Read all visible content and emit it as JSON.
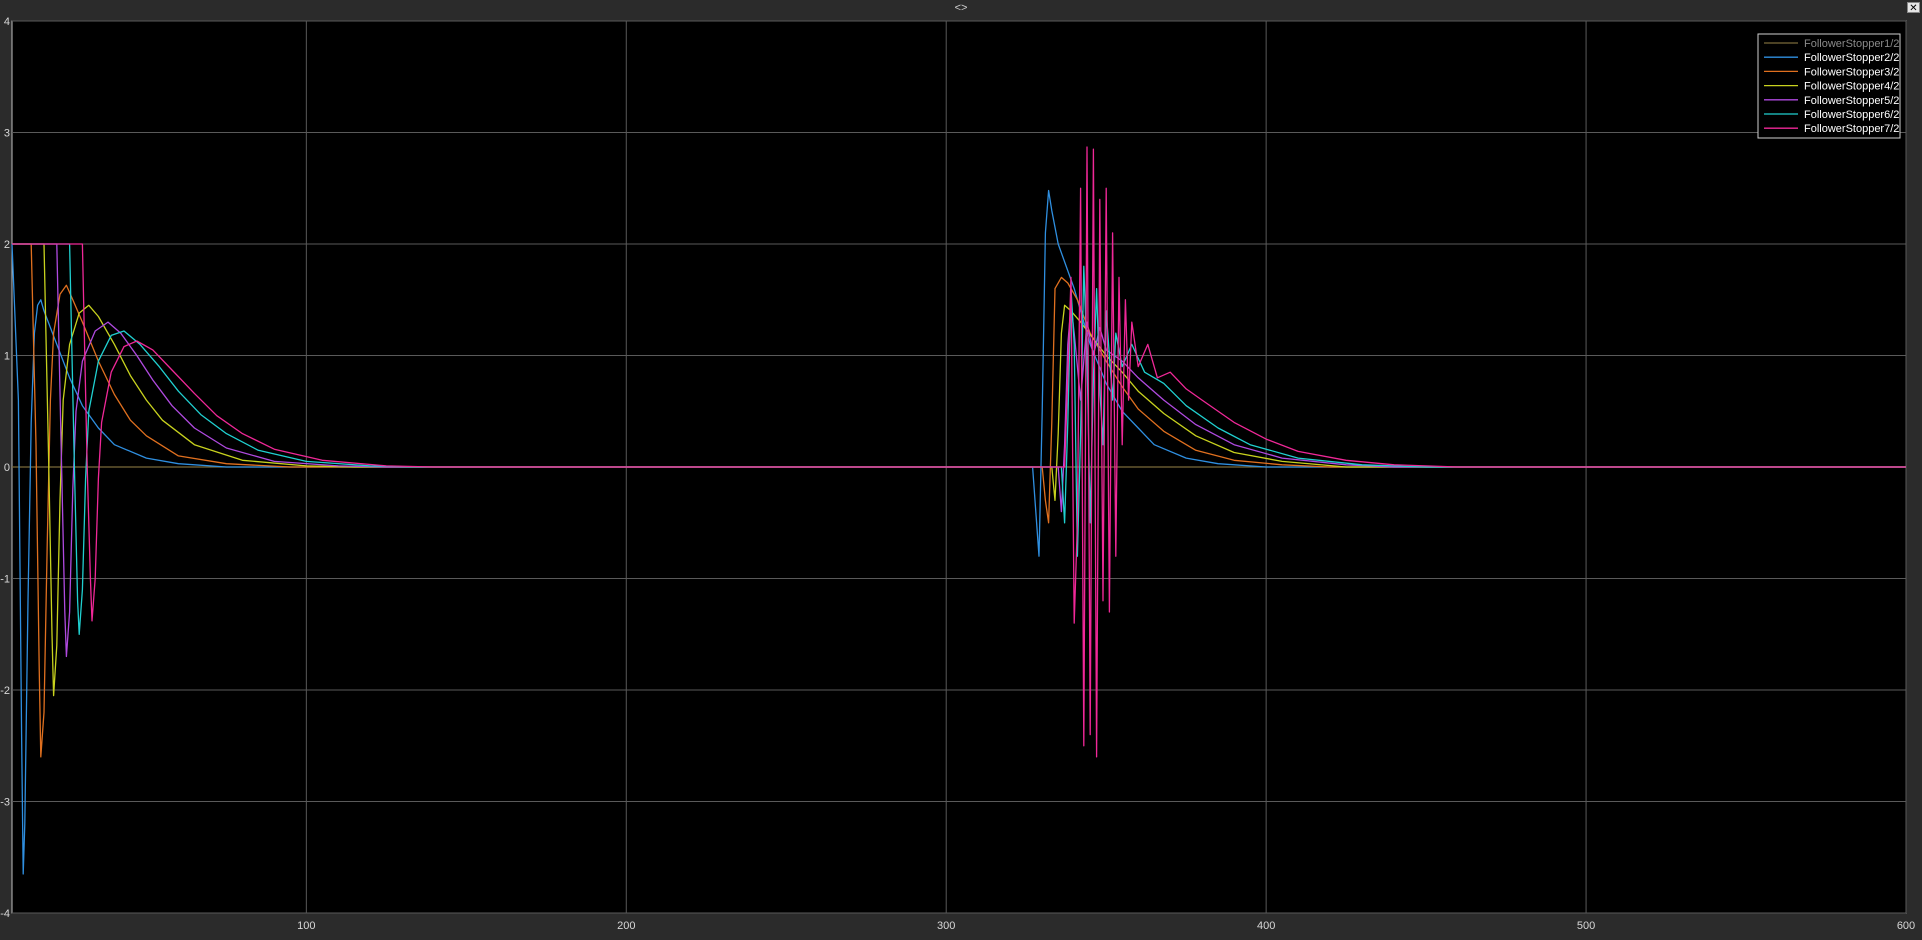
{
  "window": {
    "title": "<>",
    "close_label": "✕"
  },
  "chart_data": {
    "type": "line",
    "title": "",
    "xlabel": "",
    "ylabel": "",
    "xlim": [
      8,
      600
    ],
    "ylim": [
      -4,
      4
    ],
    "x_ticks": [
      100,
      200,
      300,
      400,
      500,
      600
    ],
    "y_ticks": [
      4,
      3,
      2,
      1,
      0,
      -1,
      -2,
      -3,
      -4
    ],
    "grid": true,
    "legend_position": "top-right",
    "background": "#000000",
    "series": [
      {
        "name": "FollowerStopper1/2",
        "color": "#7a6a3a",
        "points": [
          [
            8,
            0
          ],
          [
            600,
            0
          ]
        ]
      },
      {
        "name": "FollowerStopper2/2",
        "color": "#2f8fe0",
        "points": [
          [
            8,
            2
          ],
          [
            10,
            0.6
          ],
          [
            11,
            -2.4
          ],
          [
            11.5,
            -3.65
          ],
          [
            12,
            -3.2
          ],
          [
            13,
            -1.2
          ],
          [
            14,
            0.4
          ],
          [
            15,
            1.2
          ],
          [
            16,
            1.45
          ],
          [
            17,
            1.5
          ],
          [
            18,
            1.4
          ],
          [
            22,
            1.1
          ],
          [
            26,
            0.8
          ],
          [
            30,
            0.55
          ],
          [
            35,
            0.35
          ],
          [
            40,
            0.2
          ],
          [
            50,
            0.08
          ],
          [
            60,
            0.03
          ],
          [
            75,
            0
          ],
          [
            327,
            0
          ],
          [
            328,
            -0.4
          ],
          [
            329,
            -0.8
          ],
          [
            330,
            0.5
          ],
          [
            331,
            2.1
          ],
          [
            332,
            2.48
          ],
          [
            333,
            2.3
          ],
          [
            335,
            2.0
          ],
          [
            340,
            1.6
          ],
          [
            345,
            1.1
          ],
          [
            350,
            0.75
          ],
          [
            355,
            0.5
          ],
          [
            360,
            0.35
          ],
          [
            365,
            0.2
          ],
          [
            375,
            0.08
          ],
          [
            385,
            0.03
          ],
          [
            400,
            0
          ],
          [
            600,
            0
          ]
        ]
      },
      {
        "name": "FollowerStopper3/2",
        "color": "#e0701f",
        "points": [
          [
            8,
            2
          ],
          [
            14,
            2
          ],
          [
            15.5,
            0.2
          ],
          [
            16.5,
            -1.8
          ],
          [
            17,
            -2.6
          ],
          [
            18,
            -2.2
          ],
          [
            19,
            -0.7
          ],
          [
            20,
            0.6
          ],
          [
            21,
            1.2
          ],
          [
            23,
            1.55
          ],
          [
            25,
            1.63
          ],
          [
            27,
            1.5
          ],
          [
            30,
            1.3
          ],
          [
            35,
            0.95
          ],
          [
            40,
            0.65
          ],
          [
            45,
            0.42
          ],
          [
            50,
            0.28
          ],
          [
            60,
            0.1
          ],
          [
            75,
            0.03
          ],
          [
            95,
            0
          ],
          [
            330,
            0
          ],
          [
            331,
            -0.3
          ],
          [
            332,
            -0.5
          ],
          [
            333,
            0.4
          ],
          [
            334,
            1.6
          ],
          [
            336,
            1.7
          ],
          [
            338,
            1.65
          ],
          [
            341,
            1.5
          ],
          [
            345,
            1.2
          ],
          [
            350,
            0.95
          ],
          [
            355,
            0.72
          ],
          [
            360,
            0.52
          ],
          [
            368,
            0.32
          ],
          [
            378,
            0.15
          ],
          [
            390,
            0.06
          ],
          [
            405,
            0.02
          ],
          [
            420,
            0
          ],
          [
            600,
            0
          ]
        ]
      },
      {
        "name": "FollowerStopper4/2",
        "color": "#c8d21e",
        "points": [
          [
            8,
            2
          ],
          [
            18,
            2
          ],
          [
            19.5,
            0
          ],
          [
            20.5,
            -1.5
          ],
          [
            21,
            -2.05
          ],
          [
            22,
            -1.6
          ],
          [
            23,
            -0.3
          ],
          [
            24,
            0.6
          ],
          [
            26,
            1.1
          ],
          [
            29,
            1.38
          ],
          [
            32,
            1.45
          ],
          [
            35,
            1.35
          ],
          [
            40,
            1.1
          ],
          [
            45,
            0.82
          ],
          [
            50,
            0.6
          ],
          [
            55,
            0.42
          ],
          [
            65,
            0.2
          ],
          [
            80,
            0.06
          ],
          [
            100,
            0.01
          ],
          [
            115,
            0
          ],
          [
            333,
            0
          ],
          [
            334,
            -0.3
          ],
          [
            335,
            0.3
          ],
          [
            336,
            1.2
          ],
          [
            337,
            1.45
          ],
          [
            339,
            1.4
          ],
          [
            342,
            1.3
          ],
          [
            346,
            1.15
          ],
          [
            350,
            1.0
          ],
          [
            355,
            0.85
          ],
          [
            360,
            0.68
          ],
          [
            368,
            0.48
          ],
          [
            378,
            0.28
          ],
          [
            390,
            0.13
          ],
          [
            405,
            0.05
          ],
          [
            425,
            0
          ],
          [
            600,
            0
          ]
        ]
      },
      {
        "name": "FollowerStopper5/2",
        "color": "#b04ae0",
        "points": [
          [
            8,
            2
          ],
          [
            22,
            2
          ],
          [
            23.5,
            0
          ],
          [
            24.5,
            -1.3
          ],
          [
            25,
            -1.7
          ],
          [
            26,
            -1.3
          ],
          [
            27,
            -0.2
          ],
          [
            28,
            0.5
          ],
          [
            30,
            0.95
          ],
          [
            34,
            1.22
          ],
          [
            38,
            1.3
          ],
          [
            42,
            1.2
          ],
          [
            47,
            1.0
          ],
          [
            52,
            0.78
          ],
          [
            58,
            0.55
          ],
          [
            65,
            0.35
          ],
          [
            75,
            0.17
          ],
          [
            90,
            0.05
          ],
          [
            110,
            0.01
          ],
          [
            125,
            0
          ],
          [
            335,
            0
          ],
          [
            336,
            -0.4
          ],
          [
            337,
            0.2
          ],
          [
            338,
            1.1
          ],
          [
            339,
            1.45
          ],
          [
            340,
            1.2
          ],
          [
            342,
            0.6
          ],
          [
            344,
            1.3
          ],
          [
            346,
            1.0
          ],
          [
            348,
            1.25
          ],
          [
            350,
            1.05
          ],
          [
            355,
            0.95
          ],
          [
            360,
            0.8
          ],
          [
            368,
            0.6
          ],
          [
            378,
            0.38
          ],
          [
            390,
            0.2
          ],
          [
            405,
            0.08
          ],
          [
            425,
            0.02
          ],
          [
            440,
            0
          ],
          [
            600,
            0
          ]
        ]
      },
      {
        "name": "FollowerStopper6/2",
        "color": "#20d0d0",
        "points": [
          [
            8,
            2
          ],
          [
            26,
            2
          ],
          [
            27.5,
            0
          ],
          [
            28.5,
            -1.2
          ],
          [
            29,
            -1.5
          ],
          [
            30,
            -1.1
          ],
          [
            31,
            -0.1
          ],
          [
            32,
            0.5
          ],
          [
            35,
            0.95
          ],
          [
            39,
            1.18
          ],
          [
            43,
            1.22
          ],
          [
            48,
            1.1
          ],
          [
            54,
            0.9
          ],
          [
            60,
            0.68
          ],
          [
            67,
            0.47
          ],
          [
            75,
            0.3
          ],
          [
            85,
            0.15
          ],
          [
            100,
            0.05
          ],
          [
            120,
            0.01
          ],
          [
            135,
            0
          ],
          [
            336,
            0
          ],
          [
            337,
            -0.5
          ],
          [
            338,
            0.4
          ],
          [
            339,
            1.6
          ],
          [
            340,
            1.1
          ],
          [
            341,
            -0.8
          ],
          [
            342,
            0.3
          ],
          [
            343,
            1.8
          ],
          [
            344,
            1.0
          ],
          [
            345,
            -0.5
          ],
          [
            346,
            0.8
          ],
          [
            347,
            1.6
          ],
          [
            348,
            0.7
          ],
          [
            349,
            0.2
          ],
          [
            350,
            1.4
          ],
          [
            351,
            1.0
          ],
          [
            352,
            0.6
          ],
          [
            353,
            1.2
          ],
          [
            355,
            0.9
          ],
          [
            358,
            1.1
          ],
          [
            362,
            0.85
          ],
          [
            368,
            0.75
          ],
          [
            375,
            0.55
          ],
          [
            385,
            0.35
          ],
          [
            395,
            0.2
          ],
          [
            410,
            0.08
          ],
          [
            430,
            0.02
          ],
          [
            450,
            0
          ],
          [
            600,
            0
          ]
        ]
      },
      {
        "name": "FollowerStopper7/2",
        "color": "#f02898",
        "points": [
          [
            8,
            2
          ],
          [
            30,
            2
          ],
          [
            31.5,
            0
          ],
          [
            32.5,
            -1.0
          ],
          [
            33,
            -1.38
          ],
          [
            34,
            -1.0
          ],
          [
            35,
            -0.1
          ],
          [
            36,
            0.4
          ],
          [
            39,
            0.85
          ],
          [
            43,
            1.08
          ],
          [
            47,
            1.13
          ],
          [
            52,
            1.05
          ],
          [
            58,
            0.87
          ],
          [
            65,
            0.66
          ],
          [
            72,
            0.46
          ],
          [
            80,
            0.3
          ],
          [
            90,
            0.16
          ],
          [
            105,
            0.06
          ],
          [
            125,
            0.01
          ],
          [
            140,
            0
          ],
          [
            337,
            0
          ],
          [
            338,
            0.8
          ],
          [
            339,
            1.7
          ],
          [
            340,
            -1.4
          ],
          [
            341,
            -0.5
          ],
          [
            342,
            2.5
          ],
          [
            343,
            -2.5
          ],
          [
            344,
            2.87
          ],
          [
            345,
            -2.4
          ],
          [
            346,
            2.85
          ],
          [
            347,
            -2.6
          ],
          [
            348,
            2.4
          ],
          [
            349,
            -1.2
          ],
          [
            350,
            2.5
          ],
          [
            351,
            -1.3
          ],
          [
            352,
            2.1
          ],
          [
            353,
            -0.8
          ],
          [
            354,
            1.7
          ],
          [
            355,
            0.2
          ],
          [
            356,
            1.5
          ],
          [
            357,
            0.6
          ],
          [
            358,
            1.3
          ],
          [
            360,
            0.9
          ],
          [
            363,
            1.1
          ],
          [
            366,
            0.8
          ],
          [
            370,
            0.85
          ],
          [
            375,
            0.7
          ],
          [
            380,
            0.6
          ],
          [
            390,
            0.4
          ],
          [
            400,
            0.25
          ],
          [
            410,
            0.14
          ],
          [
            425,
            0.06
          ],
          [
            440,
            0.02
          ],
          [
            460,
            0
          ],
          [
            600,
            0
          ]
        ]
      }
    ]
  }
}
